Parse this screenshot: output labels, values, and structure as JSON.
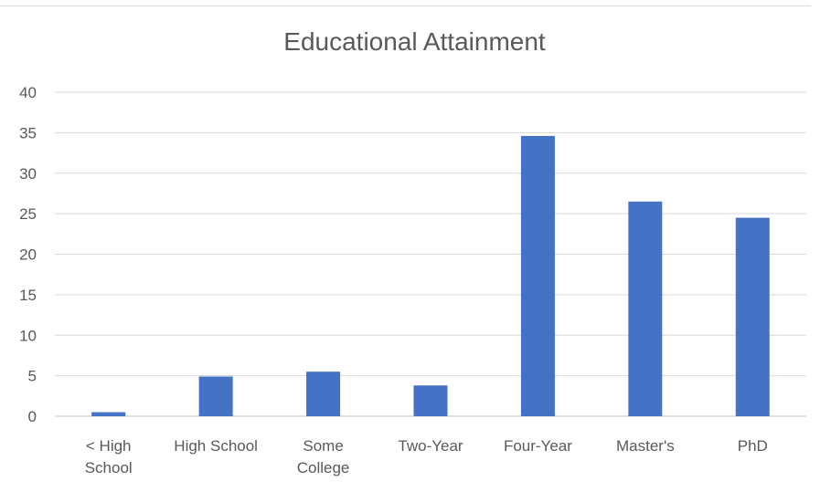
{
  "chart_data": {
    "type": "bar",
    "title": "Educational Attainment",
    "categories": [
      "< High School",
      "High School",
      "Some College",
      "Two-Year",
      "Four-Year",
      "Master's",
      "PhD"
    ],
    "category_label_lines": [
      [
        "< High",
        "School"
      ],
      [
        "High School"
      ],
      [
        "Some",
        "College"
      ],
      [
        "Two-Year"
      ],
      [
        "Four-Year"
      ],
      [
        "Master's"
      ],
      [
        "PhD"
      ]
    ],
    "values": [
      0.5,
      4.9,
      5.5,
      3.8,
      34.6,
      26.5,
      24.5
    ],
    "ylim": [
      0,
      40
    ],
    "yticks": [
      "0",
      "5",
      "10",
      "15",
      "20",
      "25",
      "30",
      "35",
      "40"
    ],
    "grid": true,
    "legend": "none",
    "bar_color": "#4472C4"
  }
}
